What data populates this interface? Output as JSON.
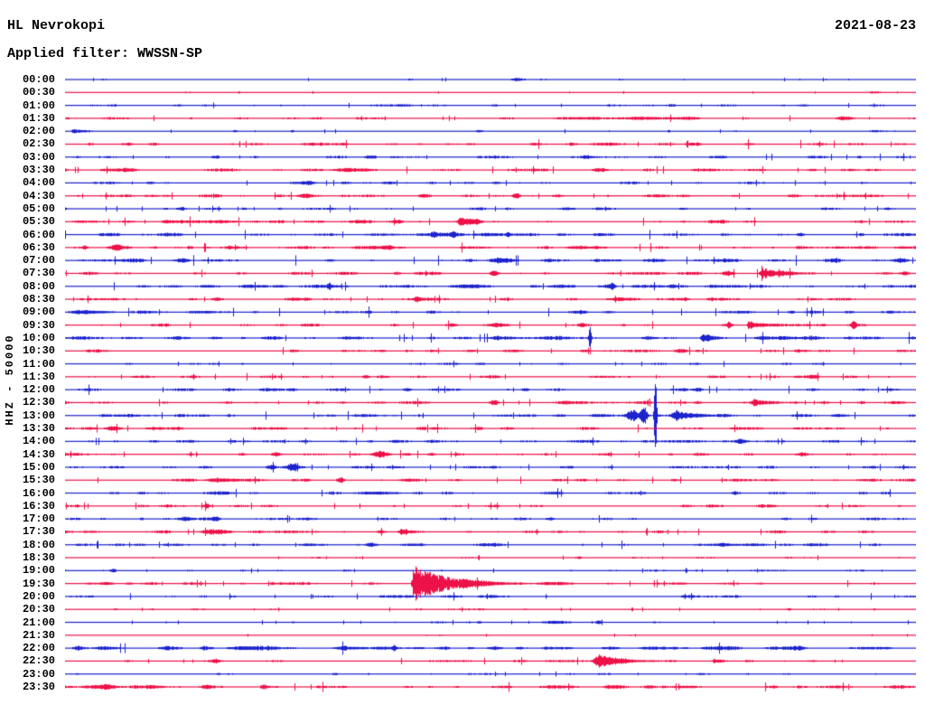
{
  "header": {
    "station": "HL Nevrokopi",
    "date": "2021-08-23",
    "filter_label": "Applied filter: WWSSN-SP"
  },
  "y_axis_label": "HHZ - 50000",
  "colors": {
    "trace_blue": "#1c22cc",
    "trace_red": "#ec1148",
    "text": "#000000",
    "background": "#ffffff"
  },
  "chart_data": {
    "type": "line",
    "subtype": "helicorder-dayplot",
    "title": "HL Nevrokopi",
    "date": "2021-08-23",
    "applied_filter": "WWSSN-SP",
    "channel_scale_label": "HHZ - 50000",
    "row_interval_minutes": 30,
    "x_range_minutes": [
      0,
      30
    ],
    "legend": "rows alternate blue/red, one per 30 minutes, 00:00 to 23:30; events: m=minutes into row, a=peak amplitude px, w=width px, c=coda decay px",
    "rows": [
      {
        "t": "00:00",
        "color": "blue",
        "noise": 0.55,
        "events": [
          {
            "m": 15.9,
            "a": 1.1,
            "w": 5
          },
          {
            "m": 12.2,
            "a": 0.9,
            "w": 3
          }
        ]
      },
      {
        "t": "00:30",
        "color": "red",
        "noise": 0.4,
        "events": [
          {
            "m": 4.4,
            "a": 0.8,
            "w": 1
          },
          {
            "m": 28.5,
            "a": 0.8,
            "w": 5
          }
        ]
      },
      {
        "t": "01:00",
        "color": "blue",
        "noise": 0.7,
        "events": [
          {
            "m": 21.4,
            "a": 1.0,
            "w": 4
          },
          {
            "m": 26,
            "a": 0.8,
            "w": 5
          }
        ]
      },
      {
        "t": "01:30",
        "color": "red",
        "noise": 0.85,
        "events": [
          {
            "m": 20,
            "a": 0.9,
            "w": 60
          },
          {
            "m": 27.4,
            "a": 1.8,
            "w": 6
          }
        ]
      },
      {
        "t": "02:00",
        "color": "blue",
        "noise": 0.55,
        "events": [
          {
            "m": 0.3,
            "a": 2.8,
            "w": 4,
            "c": 12
          },
          {
            "m": 6,
            "a": 1.0,
            "w": 2
          },
          {
            "m": 8,
            "a": 1.0,
            "w": 2
          },
          {
            "m": 14.6,
            "a": 1.2,
            "w": 3
          },
          {
            "m": 21.3,
            "a": 1.2,
            "w": 3
          },
          {
            "m": 28.5,
            "a": 1.1,
            "w": 6
          }
        ]
      },
      {
        "t": "02:30",
        "color": "red",
        "noise": 1.1,
        "events": [
          {
            "m": 14.3,
            "a": 1.0,
            "w": 4
          },
          {
            "m": 22,
            "a": 0.9,
            "w": 5
          }
        ]
      },
      {
        "t": "03:00",
        "color": "blue",
        "noise": 0.9,
        "events": [
          {
            "m": 5.3,
            "a": 1.2,
            "w": 3
          },
          {
            "m": 10.8,
            "a": 1.4,
            "w": 4
          },
          {
            "m": 18.4,
            "a": 1.4,
            "w": 4
          },
          {
            "m": 28,
            "a": 1.3,
            "w": 3
          }
        ]
      },
      {
        "t": "03:30",
        "color": "red",
        "noise": 1.0,
        "events": [
          {
            "m": 2.2,
            "a": 1.2,
            "w": 8
          },
          {
            "m": 10,
            "a": 1.8,
            "w": 14
          },
          {
            "m": 18.9,
            "a": 1.9,
            "w": 7
          }
        ]
      },
      {
        "t": "04:00",
        "color": "blue",
        "noise": 0.85,
        "events": [
          {
            "m": 3,
            "a": 1.3,
            "w": 4
          },
          {
            "m": 8.6,
            "a": 1.7,
            "w": 4
          },
          {
            "m": 11.4,
            "a": 1.5,
            "w": 7
          }
        ]
      },
      {
        "t": "04:30",
        "color": "red",
        "noise": 1.0,
        "events": [
          {
            "m": 3,
            "a": 1.0,
            "w": 6
          },
          {
            "m": 8.5,
            "a": 2.4,
            "w": 6
          },
          {
            "m": 12.7,
            "a": 1.6,
            "w": 6
          },
          {
            "m": 15.9,
            "a": 2.6,
            "w": 3
          },
          {
            "m": 25.7,
            "a": 1.4,
            "w": 6
          }
        ]
      },
      {
        "t": "05:00",
        "color": "blue",
        "noise": 0.85,
        "events": [
          {
            "m": 4.1,
            "a": 2.0,
            "w": 4
          },
          {
            "m": 17.7,
            "a": 1.4,
            "w": 8
          }
        ]
      },
      {
        "t": "05:30",
        "color": "red",
        "noise": 1.1,
        "events": [
          {
            "m": 11.8,
            "a": 1.5,
            "w": 3
          },
          {
            "m": 13.9,
            "a": 3.8,
            "w": 3,
            "c": 12
          },
          {
            "m": 14.5,
            "a": 2.3,
            "w": 4
          }
        ]
      },
      {
        "t": "06:00",
        "color": "blue",
        "noise": 1.25,
        "events": [
          {
            "m": 13,
            "a": 1.9,
            "w": 2
          },
          {
            "m": 13.7,
            "a": 1.9,
            "w": 2
          },
          {
            "m": 15.6,
            "a": 1.9,
            "w": 2
          },
          {
            "m": 25.9,
            "a": 1.9,
            "w": 3
          }
        ]
      },
      {
        "t": "06:30",
        "color": "red",
        "noise": 1.2,
        "events": [
          {
            "m": 0.7,
            "a": 2.0,
            "w": 2
          },
          {
            "m": 1.8,
            "a": 2.3,
            "w": 5
          },
          {
            "m": 4.4,
            "a": 1.7,
            "w": 3
          },
          {
            "m": 11.4,
            "a": 1.7,
            "w": 3
          },
          {
            "m": 18.2,
            "a": 1.5,
            "w": 7
          }
        ]
      },
      {
        "t": "07:00",
        "color": "blue",
        "noise": 1.35,
        "events": [
          {
            "m": 4.2,
            "a": 1.4,
            "w": 4
          },
          {
            "m": 15.3,
            "a": 1.7,
            "w": 7
          },
          {
            "m": 29.5,
            "a": 1.5,
            "w": 4
          }
        ]
      },
      {
        "t": "07:30",
        "color": "red",
        "noise": 1.1,
        "events": [
          {
            "m": 11.7,
            "a": 1.4,
            "w": 3
          },
          {
            "m": 15.1,
            "a": 1.8,
            "w": 3
          },
          {
            "m": 23.4,
            "a": 1.9,
            "w": 3
          },
          {
            "m": 24.6,
            "a": 6.0,
            "w": 6,
            "c": 16
          },
          {
            "m": 29.6,
            "a": 1.9,
            "w": 4
          }
        ]
      },
      {
        "t": "08:00",
        "color": "blue",
        "noise": 1.2,
        "events": [
          {
            "m": 9.3,
            "a": 3.4,
            "w": 1.5
          },
          {
            "m": 14.4,
            "a": 1.8,
            "w": 14
          },
          {
            "m": 19.3,
            "a": 3.2,
            "w": 2
          },
          {
            "m": 21.4,
            "a": 1.7,
            "w": 3
          }
        ]
      },
      {
        "t": "08:30",
        "color": "red",
        "noise": 1.05,
        "events": [
          {
            "m": 12.4,
            "a": 2.0,
            "w": 2
          },
          {
            "m": 19.4,
            "a": 1.5,
            "w": 9
          }
        ]
      },
      {
        "t": "09:00",
        "color": "blue",
        "noise": 1.15,
        "events": [
          {
            "m": 0.8,
            "a": 1.8,
            "w": 14
          },
          {
            "m": 18.2,
            "a": 1.8,
            "w": 5
          },
          {
            "m": 25.6,
            "a": 1.4,
            "w": 3
          }
        ]
      },
      {
        "t": "09:30",
        "color": "red",
        "noise": 1.05,
        "events": [
          {
            "m": 13.6,
            "a": 1.4,
            "w": 3
          },
          {
            "m": 15.2,
            "a": 2.4,
            "w": 6
          },
          {
            "m": 18.2,
            "a": 1.7,
            "w": 2
          },
          {
            "m": 23.4,
            "a": 3.4,
            "w": 2
          },
          {
            "m": 24.1,
            "a": 4.4,
            "w": 3,
            "c": 10
          },
          {
            "m": 27.8,
            "a": 3.9,
            "w": 2
          }
        ]
      },
      {
        "t": "10:00",
        "color": "blue",
        "noise": 1.45,
        "events": [
          {
            "m": 18.5,
            "a": 13,
            "w": 1
          },
          {
            "m": 22.5,
            "a": 3.4,
            "w": 5,
            "c": 12
          }
        ]
      },
      {
        "t": "10:30",
        "color": "red",
        "noise": 1.0,
        "events": [
          {
            "m": 21.7,
            "a": 2.3,
            "w": 5
          }
        ]
      },
      {
        "t": "11:00",
        "color": "blue",
        "noise": 0.7,
        "events": [
          {
            "m": 14.6,
            "a": 0.9,
            "w": 4
          }
        ]
      },
      {
        "t": "11:30",
        "color": "red",
        "noise": 1.0,
        "events": [
          {
            "m": 10.6,
            "a": 1.7,
            "w": 3
          },
          {
            "m": 26.4,
            "a": 2.1,
            "w": 4
          }
        ]
      },
      {
        "t": "12:00",
        "color": "blue",
        "noise": 1.05,
        "events": [
          {
            "m": 16.2,
            "a": 1.4,
            "w": 3
          },
          {
            "m": 22.3,
            "a": 2.1,
            "w": 4
          }
        ]
      },
      {
        "t": "12:30",
        "color": "red",
        "noise": 1.0,
        "events": [
          {
            "m": 15.1,
            "a": 2.4,
            "w": 3
          },
          {
            "m": 17.6,
            "a": 1.4,
            "w": 3
          },
          {
            "m": 22.3,
            "a": 1.4,
            "w": 3
          },
          {
            "m": 24.3,
            "a": 2.9,
            "w": 6,
            "c": 10
          }
        ]
      },
      {
        "t": "13:00",
        "color": "blue",
        "noise": 1.15,
        "events": [
          {
            "m": 20,
            "a": 6.5,
            "w": 5
          },
          {
            "m": 20.4,
            "a": 11,
            "w": 2.5
          },
          {
            "m": 20.8,
            "a": 50,
            "w": 1
          },
          {
            "m": 21.5,
            "a": 4.5,
            "w": 7,
            "c": 22
          }
        ]
      },
      {
        "t": "13:30",
        "color": "red",
        "noise": 1.1,
        "events": [
          {
            "m": 1.7,
            "a": 2.4,
            "w": 6
          },
          {
            "m": 14.6,
            "a": 1.7,
            "w": 3
          }
        ]
      },
      {
        "t": "14:00",
        "color": "blue",
        "noise": 1.0,
        "events": [
          {
            "m": 23.8,
            "a": 2.1,
            "w": 4
          }
        ]
      },
      {
        "t": "14:30",
        "color": "red",
        "noise": 1.0,
        "events": [
          {
            "m": 7.4,
            "a": 1.9,
            "w": 3
          },
          {
            "m": 11.1,
            "a": 2.4,
            "w": 7
          },
          {
            "m": 26,
            "a": 1.7,
            "w": 3
          }
        ]
      },
      {
        "t": "15:00",
        "color": "blue",
        "noise": 0.9,
        "events": [
          {
            "m": 7.3,
            "a": 1.9,
            "w": 3
          },
          {
            "m": 8,
            "a": 3.4,
            "w": 4
          }
        ]
      },
      {
        "t": "15:30",
        "color": "red",
        "noise": 1.0,
        "events": [
          {
            "m": 5.3,
            "a": 1.6,
            "w": 10
          },
          {
            "m": 9.7,
            "a": 2.9,
            "w": 3
          }
        ]
      },
      {
        "t": "16:00",
        "color": "blue",
        "noise": 1.1,
        "events": [
          {
            "m": 10.8,
            "a": 1.5,
            "w": 14
          }
        ]
      },
      {
        "t": "16:30",
        "color": "red",
        "noise": 0.95,
        "events": [
          {
            "m": 5,
            "a": 2.4,
            "w": 2
          }
        ]
      },
      {
        "t": "17:00",
        "color": "blue",
        "noise": 0.95,
        "events": [
          {
            "m": 4.2,
            "a": 2.4,
            "w": 6
          },
          {
            "m": 5.3,
            "a": 1.9,
            "w": 3
          },
          {
            "m": 17.1,
            "a": 1.4,
            "w": 3
          }
        ]
      },
      {
        "t": "17:30",
        "color": "red",
        "noise": 1.0,
        "events": [
          {
            "m": 5.3,
            "a": 2.9,
            "w": 8
          },
          {
            "m": 11.9,
            "a": 3.4,
            "w": 9,
            "c": 14
          }
        ]
      },
      {
        "t": "18:00",
        "color": "blue",
        "noise": 1.0,
        "events": [
          {
            "m": 10.8,
            "a": 1.9,
            "w": 4
          },
          {
            "m": 14.8,
            "a": 1.4,
            "w": 11
          },
          {
            "m": 23.2,
            "a": 1.3,
            "w": 18
          }
        ]
      },
      {
        "t": "18:30",
        "color": "red",
        "noise": 0.7,
        "events": [
          {
            "m": 18.1,
            "a": 1.4,
            "w": 3
          }
        ]
      },
      {
        "t": "19:00",
        "color": "blue",
        "noise": 0.6,
        "events": [
          {
            "m": 1.7,
            "a": 1.9,
            "w": 3
          }
        ]
      },
      {
        "t": "19:30",
        "color": "red",
        "noise": 0.9,
        "events": [
          {
            "m": 1.5,
            "a": 1.4,
            "w": 6
          },
          {
            "m": 7.3,
            "a": 1.4,
            "w": 2
          },
          {
            "m": 12.3,
            "a": 20,
            "w": 4,
            "c": 38
          }
        ]
      },
      {
        "t": "20:00",
        "color": "blue",
        "noise": 0.9,
        "events": [
          {
            "m": 15.1,
            "a": 1.2,
            "w": 5
          }
        ]
      },
      {
        "t": "20:30",
        "color": "red",
        "noise": 0.6,
        "events": [
          {
            "m": 25.5,
            "a": 1.3,
            "w": 3
          }
        ]
      },
      {
        "t": "21:00",
        "color": "blue",
        "noise": 0.6,
        "events": [
          {
            "m": 14.6,
            "a": 1.3,
            "w": 2
          },
          {
            "m": 17.3,
            "a": 1.4,
            "w": 11
          },
          {
            "m": 18.8,
            "a": 1.4,
            "w": 2
          }
        ]
      },
      {
        "t": "21:30",
        "color": "red",
        "noise": 0.45,
        "events": []
      },
      {
        "t": "22:00",
        "color": "blue",
        "noise": 1.65,
        "events": [
          {
            "m": 6.2,
            "a": 1.9,
            "w": 8
          },
          {
            "m": 11.6,
            "a": 2.9,
            "w": 1.5
          }
        ]
      },
      {
        "t": "22:30",
        "color": "red",
        "noise": 0.85,
        "events": [
          {
            "m": 5.3,
            "a": 1.2,
            "w": 3
          },
          {
            "m": 18.8,
            "a": 7.0,
            "w": 8,
            "c": 26
          },
          {
            "m": 22.9,
            "a": 2.4,
            "w": 5,
            "c": 10
          }
        ]
      },
      {
        "t": "23:00",
        "color": "blue",
        "noise": 0.6,
        "events": [
          {
            "m": 5.4,
            "a": 1.2,
            "w": 2
          },
          {
            "m": 9.5,
            "a": 1.2,
            "w": 2
          }
        ]
      },
      {
        "t": "23:30",
        "color": "red",
        "noise": 1.25,
        "events": [
          {
            "m": 1.5,
            "a": 2.9,
            "w": 8
          },
          {
            "m": 5,
            "a": 1.9,
            "w": 3
          },
          {
            "m": 7,
            "a": 1.9,
            "w": 3
          }
        ]
      }
    ]
  }
}
